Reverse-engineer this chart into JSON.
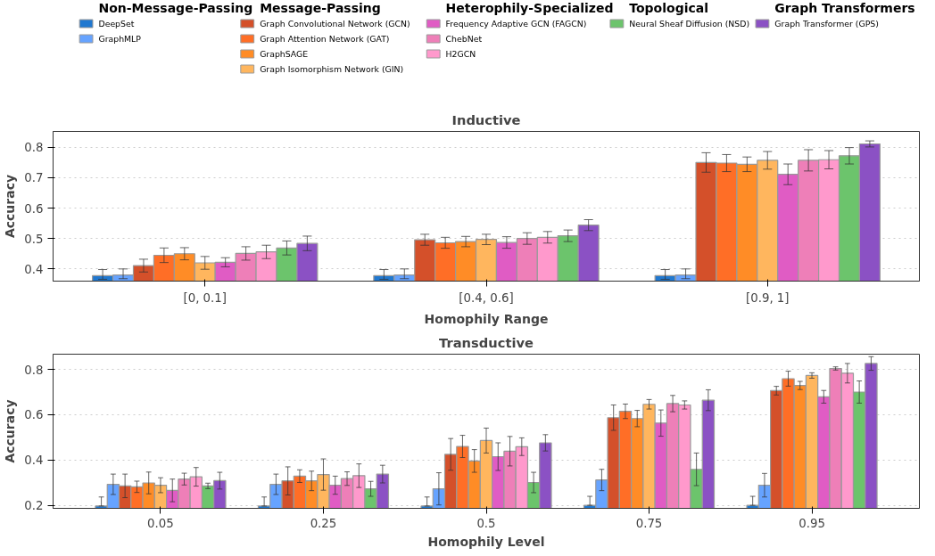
{
  "chart_data": [
    {
      "type": "bar",
      "title": "Inductive",
      "xlabel": "Homophily Range",
      "ylabel": "Accuracy",
      "categories": [
        "[0, 0.1]",
        "[0.4, 0.6]",
        "[0.9, 1]"
      ],
      "ylim": [
        0.36,
        0.852
      ],
      "yticks": [
        0.4,
        0.5,
        0.6,
        0.7,
        0.8
      ],
      "grid": "y",
      "legend": "top",
      "annotations": [
        "Non-Message-Passing",
        "Message-Passing",
        "Heterophily-Specialized",
        "Topological",
        "Graph Transformers"
      ],
      "series": [
        {
          "name": "DeepSet",
          "color": "#2078d0",
          "values": [
            0.378,
            0.378,
            0.378
          ],
          "errors": [
            [
              0.366,
              0.398
            ],
            [
              0.366,
              0.398
            ],
            [
              0.366,
              0.398
            ]
          ]
        },
        {
          "name": "GraphMLP",
          "color": "#66a3ff",
          "values": [
            0.38,
            0.38,
            0.38
          ],
          "errors": [
            [
              0.368,
              0.4
            ],
            [
              0.368,
              0.4
            ],
            [
              0.368,
              0.4
            ]
          ]
        },
        {
          "name": "Graph Convolutional Network (GCN)",
          "color": "#d4502a",
          "values": [
            0.411,
            0.496,
            0.75
          ],
          "errors": [
            0.021,
            0.018,
            0.032
          ]
        },
        {
          "name": "Graph Attention Network (GAT)",
          "color": "#ff6e26",
          "values": [
            0.445,
            0.486,
            0.748
          ],
          "errors": [
            0.024,
            0.018,
            0.028
          ]
        },
        {
          "name": "GraphSAGE",
          "color": "#ff8c26",
          "values": [
            0.45,
            0.49,
            0.744
          ],
          "errors": [
            0.02,
            0.017,
            0.024
          ]
        },
        {
          "name": "Graph Isomorphism Network (GIN)",
          "color": "#ffb65e",
          "values": [
            0.42,
            0.497,
            0.757
          ],
          "errors": [
            0.021,
            0.017,
            0.029
          ]
        },
        {
          "name": "Frequency Adaptive GCN (FAGCN)",
          "color": "#e05cc4",
          "values": [
            0.422,
            0.487,
            0.711
          ],
          "errors": [
            0.015,
            0.019,
            0.034
          ]
        },
        {
          "name": "ChebNet",
          "color": "#ee7fb8",
          "values": [
            0.451,
            0.5,
            0.757
          ],
          "errors": [
            0.022,
            0.019,
            0.035
          ]
        },
        {
          "name": "H2GCN",
          "color": "#ff99cc",
          "values": [
            0.456,
            0.504,
            0.759
          ],
          "errors": [
            0.022,
            0.019,
            0.03
          ]
        },
        {
          "name": "Neural Sheaf Diffusion (NSD)",
          "color": "#6cc46c",
          "values": [
            0.469,
            0.509,
            0.772
          ],
          "errors": [
            0.023,
            0.019,
            0.027
          ]
        },
        {
          "name": "Graph Transformer (GPS)",
          "color": "#8b51c4",
          "values": [
            0.484,
            0.544,
            0.811
          ],
          "errors": [
            0.024,
            0.018,
            0.01
          ]
        }
      ]
    },
    {
      "type": "bar",
      "title": "Transductive",
      "xlabel": "Homophily Level",
      "ylabel": "Accuracy",
      "categories": [
        "0.05",
        "0.25",
        "0.5",
        "0.75",
        "0.95"
      ],
      "ylim": [
        0.187,
        0.867
      ],
      "yticks": [
        0.2,
        0.4,
        0.6,
        0.8
      ],
      "grid": "y",
      "series": [
        {
          "color": "#2078d0",
          "values": [
            0.197,
            0.197,
            0.197,
            0.2,
            0.2
          ],
          "errors": [
            [
              0.197,
              0.237
            ],
            [
              0.197,
              0.237
            ],
            [
              0.197,
              0.237
            ],
            [
              0.2,
              0.24
            ],
            [
              0.2,
              0.24
            ]
          ]
        },
        {
          "color": "#66a3ff",
          "values": [
            0.293,
            0.293,
            0.273,
            0.312,
            0.289
          ],
          "errors": [
            0.045,
            0.045,
            0.071,
            0.047,
            0.052
          ]
        },
        {
          "color": "#d4502a",
          "values": [
            0.286,
            0.308,
            0.425,
            0.587,
            0.706
          ],
          "errors": [
            0.052,
            0.062,
            0.07,
            0.056,
            0.019
          ]
        },
        {
          "color": "#ff6e26",
          "values": [
            0.282,
            0.329,
            0.46,
            0.615,
            0.759
          ],
          "errors": [
            0.025,
            0.028,
            0.049,
            0.032,
            0.033
          ]
        },
        {
          "color": "#ff8c26",
          "values": [
            0.299,
            0.308,
            0.396,
            0.583,
            0.729
          ],
          "errors": [
            0.048,
            0.043,
            0.05,
            0.036,
            0.018
          ]
        },
        {
          "color": "#ffb65e",
          "values": [
            0.289,
            0.336,
            0.486,
            0.646,
            0.773
          ],
          "errors": [
            0.033,
            0.069,
            0.055,
            0.021,
            0.012
          ]
        },
        {
          "color": "#e05cc4",
          "values": [
            0.266,
            0.289,
            0.415,
            0.563,
            0.679
          ],
          "errors": [
            0.05,
            0.04,
            0.061,
            0.058,
            0.028
          ]
        },
        {
          "color": "#ee7fb8",
          "values": [
            0.316,
            0.318,
            0.439,
            0.649,
            0.804
          ],
          "errors": [
            0.026,
            0.03,
            0.065,
            0.036,
            0.007
          ]
        },
        {
          "color": "#ff99cc",
          "values": [
            0.326,
            0.331,
            0.459,
            0.643,
            0.783
          ],
          "errors": [
            0.041,
            0.052,
            0.039,
            0.018,
            0.043
          ]
        },
        {
          "color": "#6cc46c",
          "values": [
            0.286,
            0.273,
            0.301,
            0.359,
            0.7
          ],
          "errors": [
            0.012,
            0.033,
            0.045,
            0.072,
            0.049
          ]
        },
        {
          "color": "#8b51c4",
          "values": [
            0.309,
            0.338,
            0.476,
            0.664,
            0.826
          ],
          "errors": [
            0.037,
            0.039,
            0.036,
            0.046,
            0.03
          ]
        }
      ]
    }
  ]
}
